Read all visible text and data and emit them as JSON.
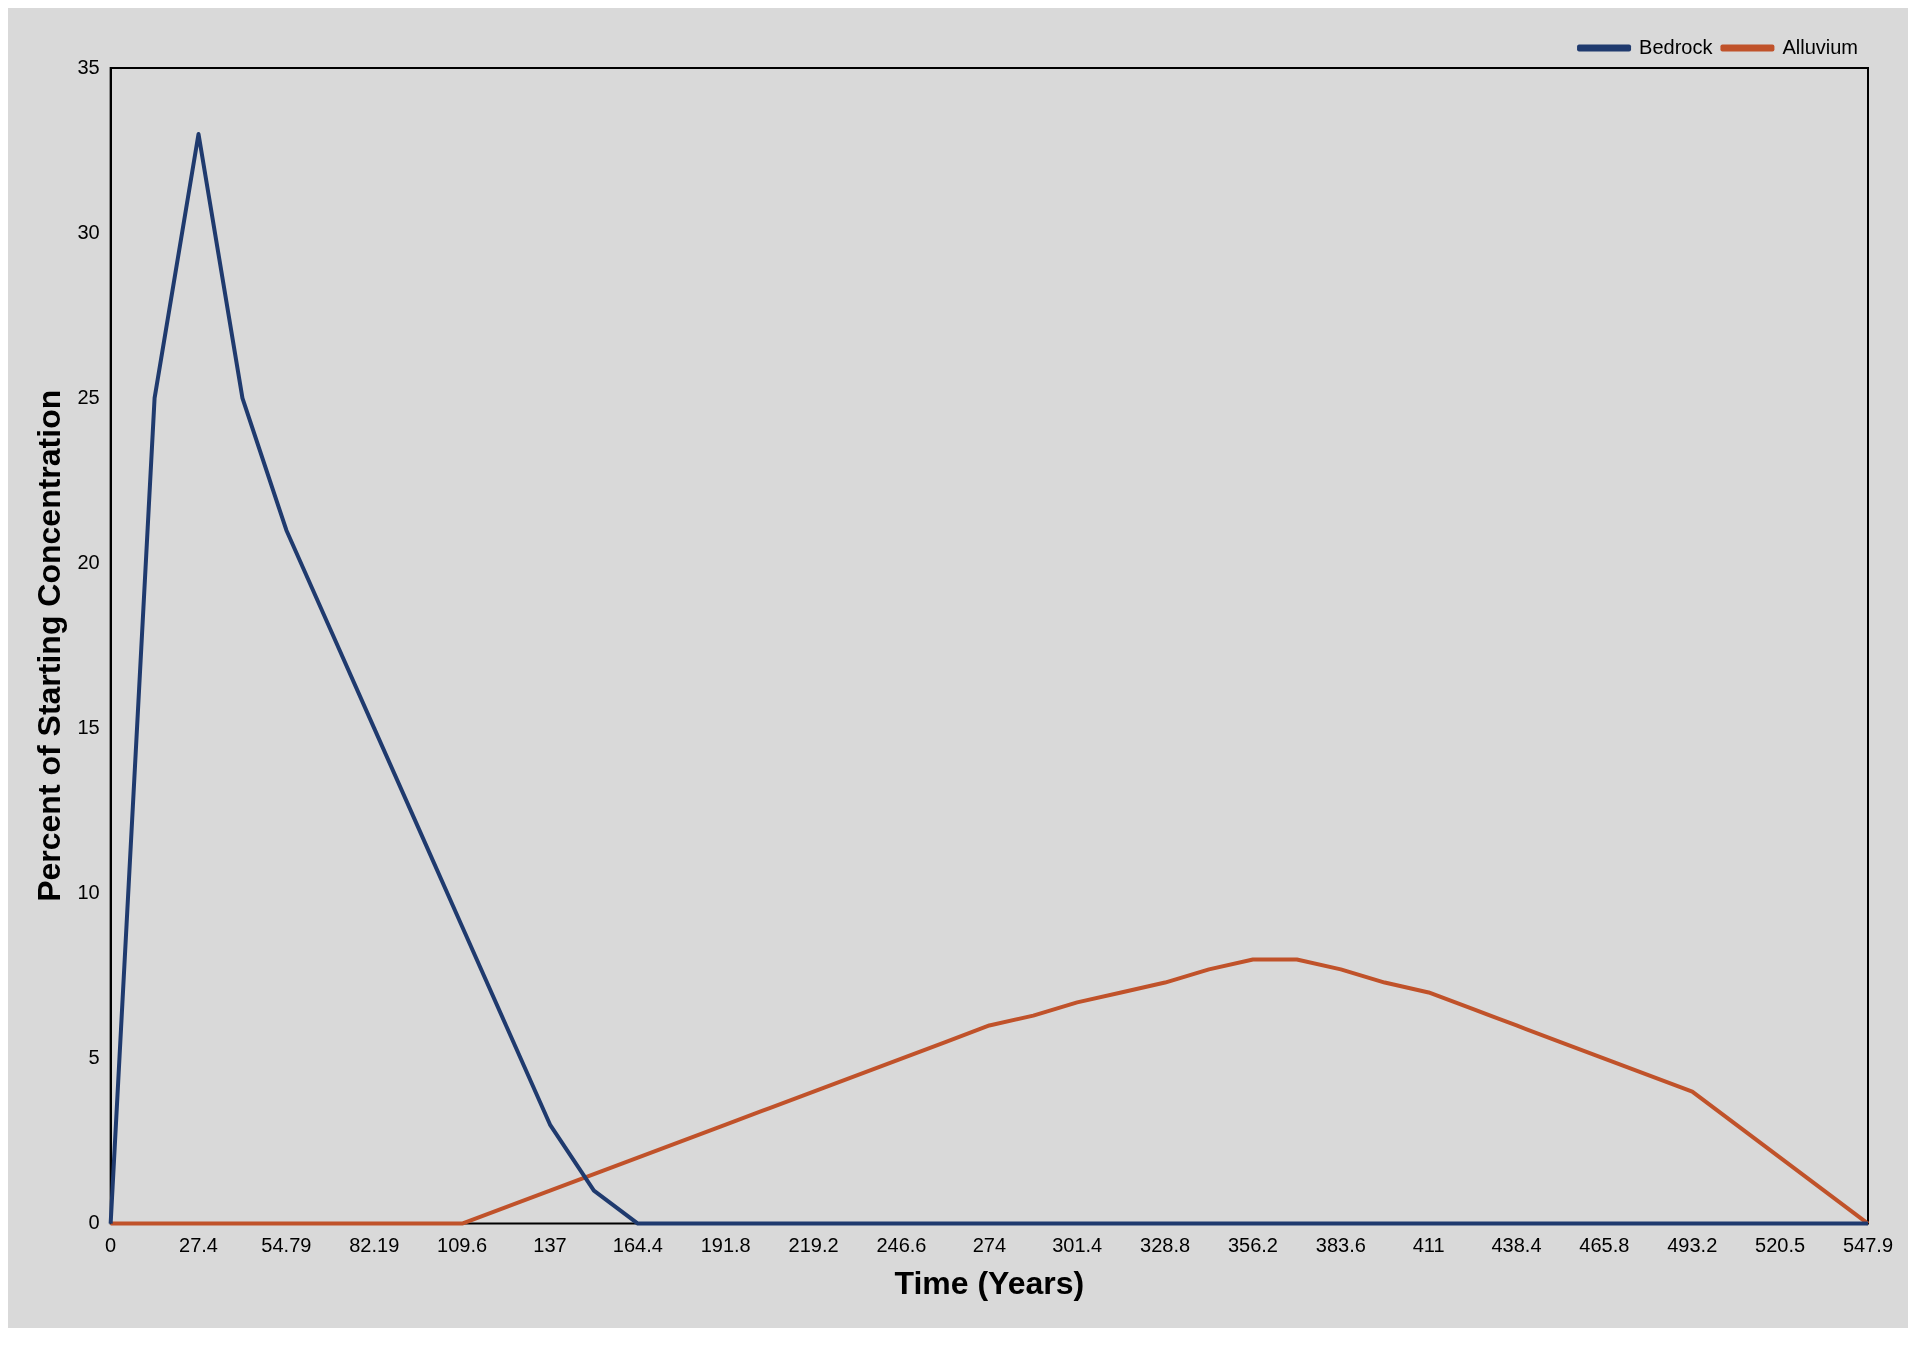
{
  "chart_data": {
    "type": "line",
    "xlabel": "Time (Years)",
    "ylabel": "Percent of Starting Concentration",
    "categories": [
      "0",
      null,
      "27.4",
      null,
      "54.79",
      null,
      "82.19",
      null,
      "109.6",
      null,
      "137",
      null,
      "164.4",
      null,
      "191.8",
      null,
      "219.2",
      null,
      "246.6",
      null,
      "274",
      null,
      "301.4",
      null,
      "328.8",
      null,
      "356.2",
      null,
      "383.6",
      null,
      "411",
      null,
      "438.4",
      null,
      "465.8",
      null,
      "493.2",
      null,
      "520.5",
      null,
      "547.9"
    ],
    "series": [
      {
        "name": "Bedrock",
        "color": "#1f3a6e",
        "values": [
          0,
          25,
          33,
          25,
          21,
          18,
          15,
          12,
          9,
          6,
          3,
          1,
          0,
          0,
          0,
          0,
          0,
          0,
          0,
          0,
          0,
          0,
          0,
          0,
          0,
          0,
          0,
          0,
          0,
          0,
          0,
          0,
          0,
          0,
          0,
          0,
          0,
          0,
          0,
          0,
          0
        ]
      },
      {
        "name": "Alluvium",
        "color": "#c0522a",
        "values": [
          0,
          0,
          0,
          0,
          0,
          0,
          0,
          0,
          0,
          0.5,
          1,
          1.5,
          2,
          2.5,
          3,
          3.5,
          4,
          4.5,
          5,
          5.5,
          6,
          6.3,
          6.7,
          7,
          7.3,
          7.7,
          8,
          8,
          7.7,
          7.3,
          7,
          6.5,
          6,
          5.5,
          5,
          4.5,
          4,
          3,
          2,
          1,
          0
        ]
      }
    ],
    "ylim": [
      0,
      35
    ],
    "yticks": [
      0,
      5,
      10,
      15,
      20,
      25,
      30,
      35
    ],
    "grid": false,
    "legend": "top right",
    "marker": "none",
    "line_style": "solid"
  }
}
